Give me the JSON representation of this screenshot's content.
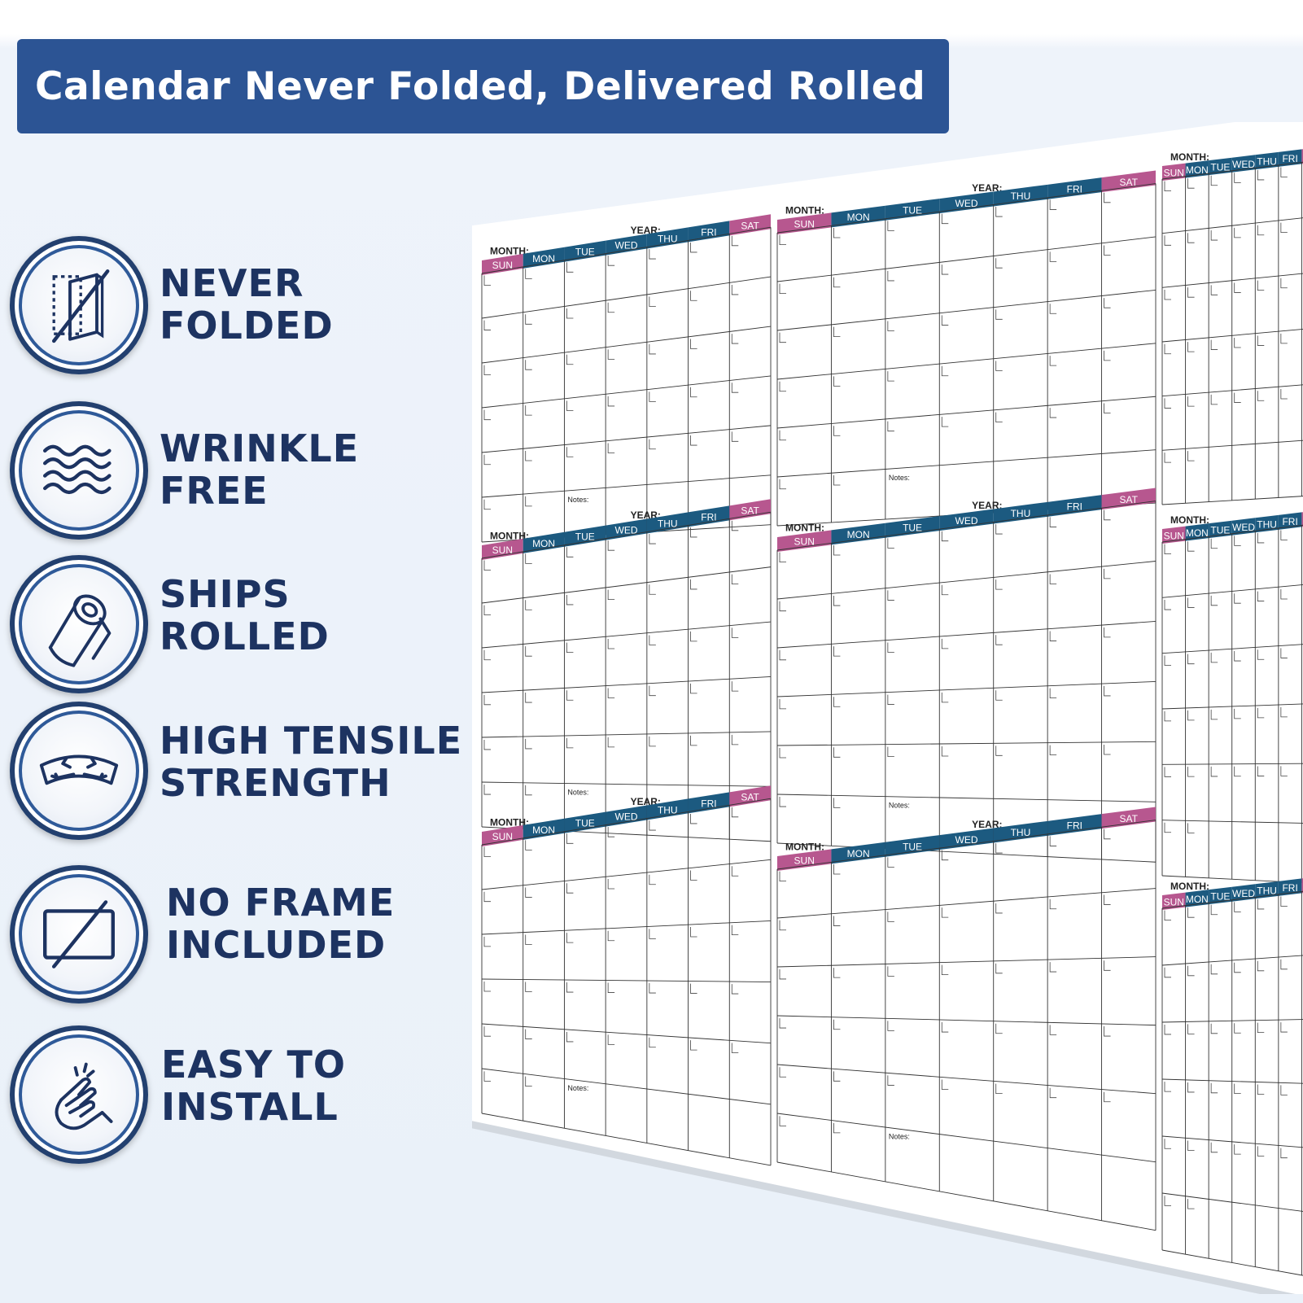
{
  "banner": {
    "title": "Calendar Never Folded, Delivered Rolled"
  },
  "features": [
    {
      "line1": "NEVER",
      "line2": "FOLDED",
      "icon": "never-folded-icon"
    },
    {
      "line1": "WRINKLE",
      "line2": "FREE",
      "icon": "wavy-lines-icon"
    },
    {
      "line1": "SHIPS",
      "line2": "ROLLED",
      "icon": "rolled-paper-icon"
    },
    {
      "line1": "HIGH TENSILE",
      "line2": "STRENGTH",
      "icon": "tension-arrows-icon"
    },
    {
      "line1": "NO FRAME",
      "line2": "INCLUDED",
      "icon": "no-frame-icon"
    },
    {
      "line1": "EASY TO",
      "line2": "INSTALL",
      "icon": "snap-fingers-icon"
    }
  ],
  "calendar": {
    "month_label": "MONTH:",
    "year_label": "YEAR:",
    "notes_label": "Notes:",
    "days": [
      "SUN",
      "MON",
      "TUE",
      "WED",
      "THU",
      "FRI",
      "SAT"
    ],
    "weekend_color": "#b7578f",
    "weekday_color": "#1c5a80"
  }
}
